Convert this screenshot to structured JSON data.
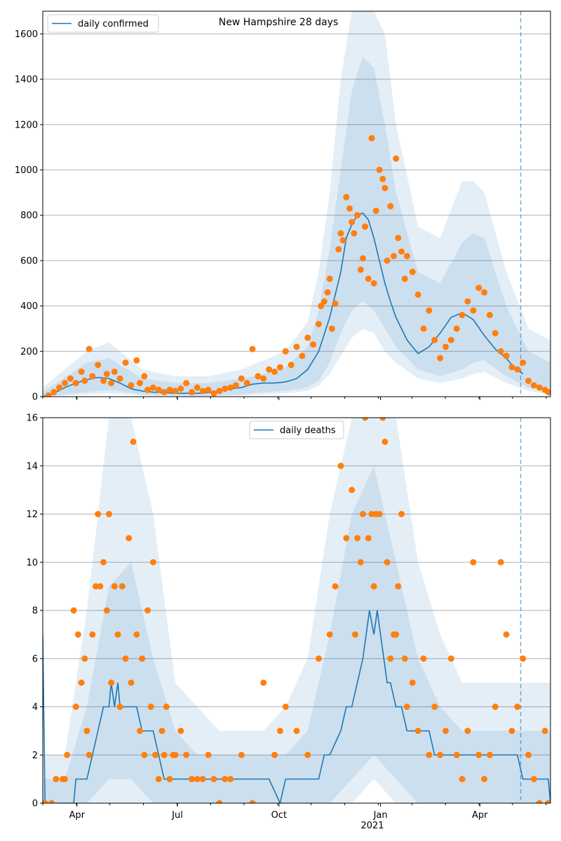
{
  "figure": {
    "title": "New Hampshire 28 days",
    "x_year_label": "2021"
  },
  "colors": {
    "line": "#1f77b4",
    "band": "#1f77b4",
    "points": "#ff7f0e",
    "grid": "#b0b0b0",
    "forecast_marker": "#1f77b4"
  },
  "chart_data": [
    {
      "type": "line",
      "name": "daily confirmed",
      "title": "New Hampshire 28 days",
      "legend": "top-left",
      "xlim": [
        0,
        460
      ],
      "ylim": [
        0,
        1700
      ],
      "yticks": [
        0,
        200,
        400,
        600,
        800,
        1000,
        1200,
        1400,
        1600
      ],
      "xticks": [
        {
          "day": 31,
          "label": "Apr"
        },
        {
          "day": 122,
          "label": "Jul"
        },
        {
          "day": 214,
          "label": "Oct"
        },
        {
          "day": 306,
          "label": "Jan"
        },
        {
          "day": 396,
          "label": "Apr"
        }
      ],
      "forecast_start_day": 433,
      "line": {
        "x": [
          0,
          10,
          20,
          30,
          40,
          50,
          60,
          70,
          80,
          90,
          100,
          110,
          120,
          130,
          140,
          150,
          160,
          170,
          180,
          190,
          200,
          210,
          220,
          230,
          240,
          250,
          260,
          270,
          275,
          280,
          285,
          290,
          295,
          300,
          305,
          310,
          315,
          320,
          330,
          340,
          350,
          360,
          370,
          380,
          390,
          400,
          410,
          420,
          425,
          430,
          435
        ],
        "y": [
          0,
          15,
          40,
          60,
          75,
          85,
          80,
          60,
          35,
          25,
          20,
          18,
          15,
          15,
          15,
          18,
          25,
          35,
          40,
          55,
          60,
          60,
          65,
          80,
          120,
          200,
          350,
          550,
          700,
          760,
          800,
          810,
          780,
          700,
          600,
          500,
          420,
          350,
          250,
          190,
          220,
          280,
          350,
          370,
          340,
          270,
          210,
          170,
          140,
          120,
          100
        ]
      },
      "bands": [
        {
          "x": [
            0,
            40,
            60,
            90,
            120,
            150,
            180,
            200,
            220,
            240,
            250,
            260,
            270,
            280,
            290,
            300,
            310,
            320,
            340,
            360,
            380,
            390,
            400,
            420,
            440,
            460
          ],
          "lower": [
            0,
            20,
            30,
            10,
            5,
            5,
            10,
            20,
            25,
            40,
            70,
            150,
            280,
            380,
            420,
            380,
            300,
            220,
            120,
            90,
            120,
            150,
            160,
            90,
            40,
            20
          ],
          "upper": [
            20,
            150,
            170,
            80,
            60,
            60,
            80,
            100,
            130,
            220,
            380,
            650,
            1000,
            1350,
            1500,
            1450,
            1200,
            900,
            550,
            500,
            680,
            720,
            700,
            400,
            200,
            150
          ]
        },
        {
          "x": [
            0,
            40,
            60,
            90,
            120,
            150,
            180,
            200,
            220,
            240,
            250,
            260,
            270,
            280,
            290,
            300,
            310,
            320,
            340,
            360,
            380,
            390,
            400,
            420,
            440,
            460
          ],
          "lower": [
            0,
            10,
            15,
            5,
            2,
            2,
            5,
            10,
            15,
            25,
            50,
            100,
            180,
            260,
            300,
            280,
            200,
            150,
            80,
            60,
            80,
            100,
            110,
            60,
            25,
            10
          ],
          "upper": [
            40,
            200,
            240,
            120,
            90,
            90,
            120,
            160,
            200,
            330,
            550,
            900,
            1400,
            1700,
            1700,
            1700,
            1600,
            1200,
            750,
            700,
            950,
            950,
            900,
            550,
            300,
            250
          ]
        }
      ],
      "points": {
        "x": [
          5,
          10,
          15,
          20,
          25,
          30,
          35,
          38,
          42,
          45,
          50,
          55,
          58,
          62,
          65,
          70,
          75,
          80,
          85,
          88,
          92,
          95,
          100,
          105,
          110,
          115,
          120,
          125,
          130,
          135,
          140,
          145,
          150,
          155,
          160,
          165,
          170,
          175,
          180,
          185,
          190,
          195,
          200,
          205,
          210,
          215,
          220,
          225,
          230,
          235,
          240,
          245,
          250,
          252,
          255,
          258,
          260,
          262,
          265,
          268,
          270,
          272,
          275,
          278,
          280,
          282,
          285,
          288,
          290,
          292,
          295,
          298,
          300,
          302,
          305,
          308,
          310,
          312,
          315,
          318,
          320,
          322,
          325,
          328,
          330,
          335,
          340,
          345,
          350,
          355,
          360,
          365,
          370,
          375,
          380,
          385,
          390,
          395,
          400,
          405,
          410,
          415,
          420,
          425,
          430,
          435,
          440,
          445,
          450,
          455,
          458
        ],
        "y": [
          5,
          20,
          40,
          60,
          80,
          60,
          110,
          70,
          210,
          90,
          140,
          70,
          100,
          60,
          110,
          80,
          150,
          50,
          160,
          60,
          90,
          30,
          40,
          30,
          20,
          30,
          25,
          35,
          60,
          20,
          40,
          25,
          30,
          15,
          25,
          35,
          40,
          50,
          80,
          60,
          210,
          90,
          80,
          120,
          110,
          130,
          200,
          140,
          220,
          180,
          260,
          230,
          320,
          400,
          420,
          460,
          520,
          300,
          410,
          650,
          720,
          690,
          880,
          830,
          770,
          720,
          800,
          560,
          610,
          750,
          520,
          1140,
          500,
          820,
          1000,
          960,
          920,
          600,
          840,
          620,
          1050,
          700,
          640,
          520,
          620,
          550,
          450,
          300,
          380,
          250,
          170,
          220,
          250,
          300,
          360,
          420,
          380,
          480,
          460,
          360,
          280,
          200,
          180,
          130,
          120,
          150,
          70,
          50,
          40,
          30,
          20
        ]
      }
    },
    {
      "type": "line",
      "name": "daily deaths",
      "legend": "top-center",
      "xlim": [
        0,
        460
      ],
      "ylim": [
        0,
        16
      ],
      "yticks": [
        0,
        2,
        4,
        6,
        8,
        10,
        12,
        14,
        16
      ],
      "xticks": [
        {
          "day": 31,
          "label": "Apr"
        },
        {
          "day": 122,
          "label": "Jul"
        },
        {
          "day": 214,
          "label": "Oct"
        },
        {
          "day": 306,
          "label": "Jan"
        },
        {
          "day": 396,
          "label": "Apr"
        }
      ],
      "forecast_start_day": 433,
      "line": {
        "x": [
          0,
          2,
          4,
          28,
          30,
          40,
          45,
          50,
          55,
          60,
          62,
          65,
          68,
          70,
          72,
          75,
          78,
          80,
          85,
          90,
          95,
          100,
          105,
          110,
          115,
          120,
          125,
          130,
          135,
          145,
          155,
          165,
          175,
          185,
          195,
          205,
          215,
          220,
          225,
          240,
          250,
          255,
          260,
          270,
          275,
          280,
          285,
          290,
          293,
          296,
          300,
          303,
          306,
          309,
          312,
          315,
          320,
          325,
          330,
          340,
          350,
          355,
          360,
          370,
          380,
          390,
          395,
          400,
          405,
          410,
          415,
          420,
          425,
          430,
          435,
          440,
          445,
          450,
          455,
          458,
          460
        ],
        "y": [
          7,
          0,
          0,
          0,
          1,
          1,
          2,
          3,
          4,
          4,
          5,
          4,
          5,
          4,
          4,
          4,
          4,
          4,
          4,
          3,
          3,
          3,
          2,
          1,
          1,
          1,
          1,
          1,
          1,
          1,
          1,
          1,
          1,
          1,
          1,
          1,
          0,
          1,
          1,
          1,
          1,
          2,
          2,
          3,
          4,
          4,
          5,
          6,
          7,
          8,
          7,
          8,
          7,
          6,
          5,
          5,
          4,
          4,
          3,
          3,
          3,
          2,
          2,
          2,
          2,
          2,
          2,
          2,
          2,
          2,
          2,
          2,
          2,
          2,
          1,
          1,
          1,
          1,
          1,
          1,
          0
        ]
      },
      "bands": [
        {
          "x": [
            0,
            20,
            40,
            60,
            80,
            100,
            120,
            140,
            160,
            180,
            200,
            220,
            240,
            260,
            280,
            300,
            320,
            340,
            360,
            380,
            400,
            420,
            440,
            460
          ],
          "lower": [
            0,
            0,
            0,
            1,
            1,
            0,
            0,
            0,
            0,
            0,
            0,
            0,
            0,
            0,
            1,
            2,
            1,
            0,
            0,
            0,
            0,
            0,
            0,
            0
          ],
          "upper": [
            1,
            1,
            4,
            9,
            10,
            6,
            3,
            2,
            2,
            2,
            2,
            2,
            3,
            7,
            12,
            14,
            10,
            6,
            4,
            3,
            3,
            3,
            3,
            3
          ]
        },
        {
          "x": [
            0,
            20,
            40,
            60,
            80,
            100,
            120,
            140,
            160,
            180,
            200,
            220,
            240,
            260,
            280,
            300,
            320,
            340,
            360,
            380,
            400,
            420,
            440,
            460
          ],
          "lower": [
            0,
            0,
            0,
            0,
            0,
            0,
            0,
            0,
            0,
            0,
            0,
            0,
            0,
            0,
            0,
            1,
            0,
            0,
            0,
            0,
            0,
            0,
            0,
            0
          ],
          "upper": [
            2,
            2,
            8,
            16,
            16,
            12,
            5,
            4,
            3,
            3,
            3,
            4,
            6,
            12,
            16,
            16,
            16,
            10,
            7,
            5,
            5,
            5,
            5,
            5
          ]
        }
      ],
      "points": {
        "x": [
          2,
          8,
          12,
          18,
          20,
          22,
          28,
          30,
          32,
          35,
          38,
          40,
          42,
          45,
          48,
          50,
          52,
          55,
          58,
          60,
          62,
          65,
          68,
          70,
          72,
          75,
          78,
          80,
          82,
          85,
          88,
          90,
          92,
          95,
          98,
          100,
          102,
          105,
          108,
          110,
          112,
          115,
          118,
          120,
          125,
          130,
          135,
          140,
          145,
          150,
          155,
          160,
          165,
          170,
          180,
          190,
          200,
          210,
          215,
          220,
          230,
          240,
          250,
          260,
          265,
          270,
          275,
          280,
          283,
          285,
          288,
          290,
          292,
          295,
          298,
          300,
          302,
          305,
          308,
          310,
          312,
          315,
          318,
          320,
          322,
          325,
          328,
          330,
          335,
          340,
          345,
          350,
          355,
          360,
          365,
          370,
          375,
          380,
          385,
          390,
          395,
          400,
          405,
          410,
          415,
          420,
          425,
          430,
          435,
          440,
          445,
          450,
          455,
          458
        ],
        "y": [
          0,
          0,
          1,
          1,
          1,
          2,
          8,
          4,
          7,
          5,
          6,
          3,
          2,
          7,
          9,
          12,
          9,
          10,
          8,
          12,
          5,
          9,
          7,
          4,
          9,
          6,
          11,
          5,
          15,
          7,
          3,
          6,
          2,
          8,
          4,
          10,
          2,
          1,
          3,
          2,
          4,
          1,
          2,
          2,
          3,
          2,
          1,
          1,
          1,
          2,
          1,
          0,
          1,
          1,
          2,
          0,
          5,
          2,
          3,
          4,
          3,
          2,
          6,
          7,
          9,
          14,
          11,
          13,
          7,
          11,
          10,
          12,
          16,
          11,
          12,
          9,
          12,
          12,
          16,
          15,
          10,
          6,
          7,
          7,
          9,
          12,
          6,
          4,
          5,
          3,
          6,
          2,
          4,
          2,
          3,
          6,
          2,
          1,
          3,
          10,
          2,
          1,
          2,
          4,
          10,
          7,
          3,
          4,
          6,
          2,
          1,
          0,
          3,
          0
        ]
      }
    }
  ]
}
